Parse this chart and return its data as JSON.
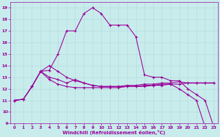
{
  "xlabel": "Windchill (Refroidissement éolien,°C)",
  "xlim": [
    -0.5,
    23.5
  ],
  "ylim": [
    9,
    19.5
  ],
  "xticks": [
    0,
    1,
    2,
    3,
    4,
    5,
    6,
    7,
    8,
    9,
    10,
    11,
    12,
    13,
    14,
    15,
    16,
    17,
    18,
    19,
    20,
    21,
    22,
    23
  ],
  "yticks": [
    9,
    10,
    11,
    12,
    13,
    14,
    15,
    16,
    17,
    18,
    19
  ],
  "bg_color": "#c8ecec",
  "line_color": "#990099",
  "grid_color": "#b0d8d8",
  "series1": [
    11.0,
    11.1,
    12.2,
    13.5,
    13.6,
    15.0,
    17.0,
    17.0,
    18.5,
    19.0,
    18.5,
    17.5,
    17.5,
    17.5,
    16.5,
    13.2,
    13.0,
    13.0,
    12.7,
    12.7,
    12.0,
    11.5,
    11.0,
    8.7
  ],
  "series2": [
    11.0,
    11.1,
    12.2,
    13.5,
    13.0,
    12.8,
    12.5,
    12.8,
    12.5,
    12.3,
    12.2,
    12.2,
    12.2,
    12.3,
    12.3,
    12.4,
    12.4,
    12.5,
    12.5,
    12.6,
    12.5,
    12.5,
    12.5,
    12.5
  ],
  "series3": [
    11.0,
    11.1,
    12.2,
    13.5,
    14.0,
    13.5,
    13.0,
    12.7,
    12.5,
    12.3,
    12.2,
    12.2,
    12.2,
    12.2,
    12.2,
    12.3,
    12.3,
    12.4,
    12.4,
    12.0,
    11.5,
    11.0,
    8.7,
    8.7
  ],
  "series4": [
    11.0,
    11.1,
    12.2,
    13.5,
    12.8,
    12.4,
    12.2,
    12.1,
    12.1,
    12.1,
    12.1,
    12.1,
    12.1,
    12.2,
    12.2,
    12.2,
    12.3,
    12.3,
    12.4,
    12.4,
    12.5,
    12.5,
    12.5,
    12.5
  ]
}
